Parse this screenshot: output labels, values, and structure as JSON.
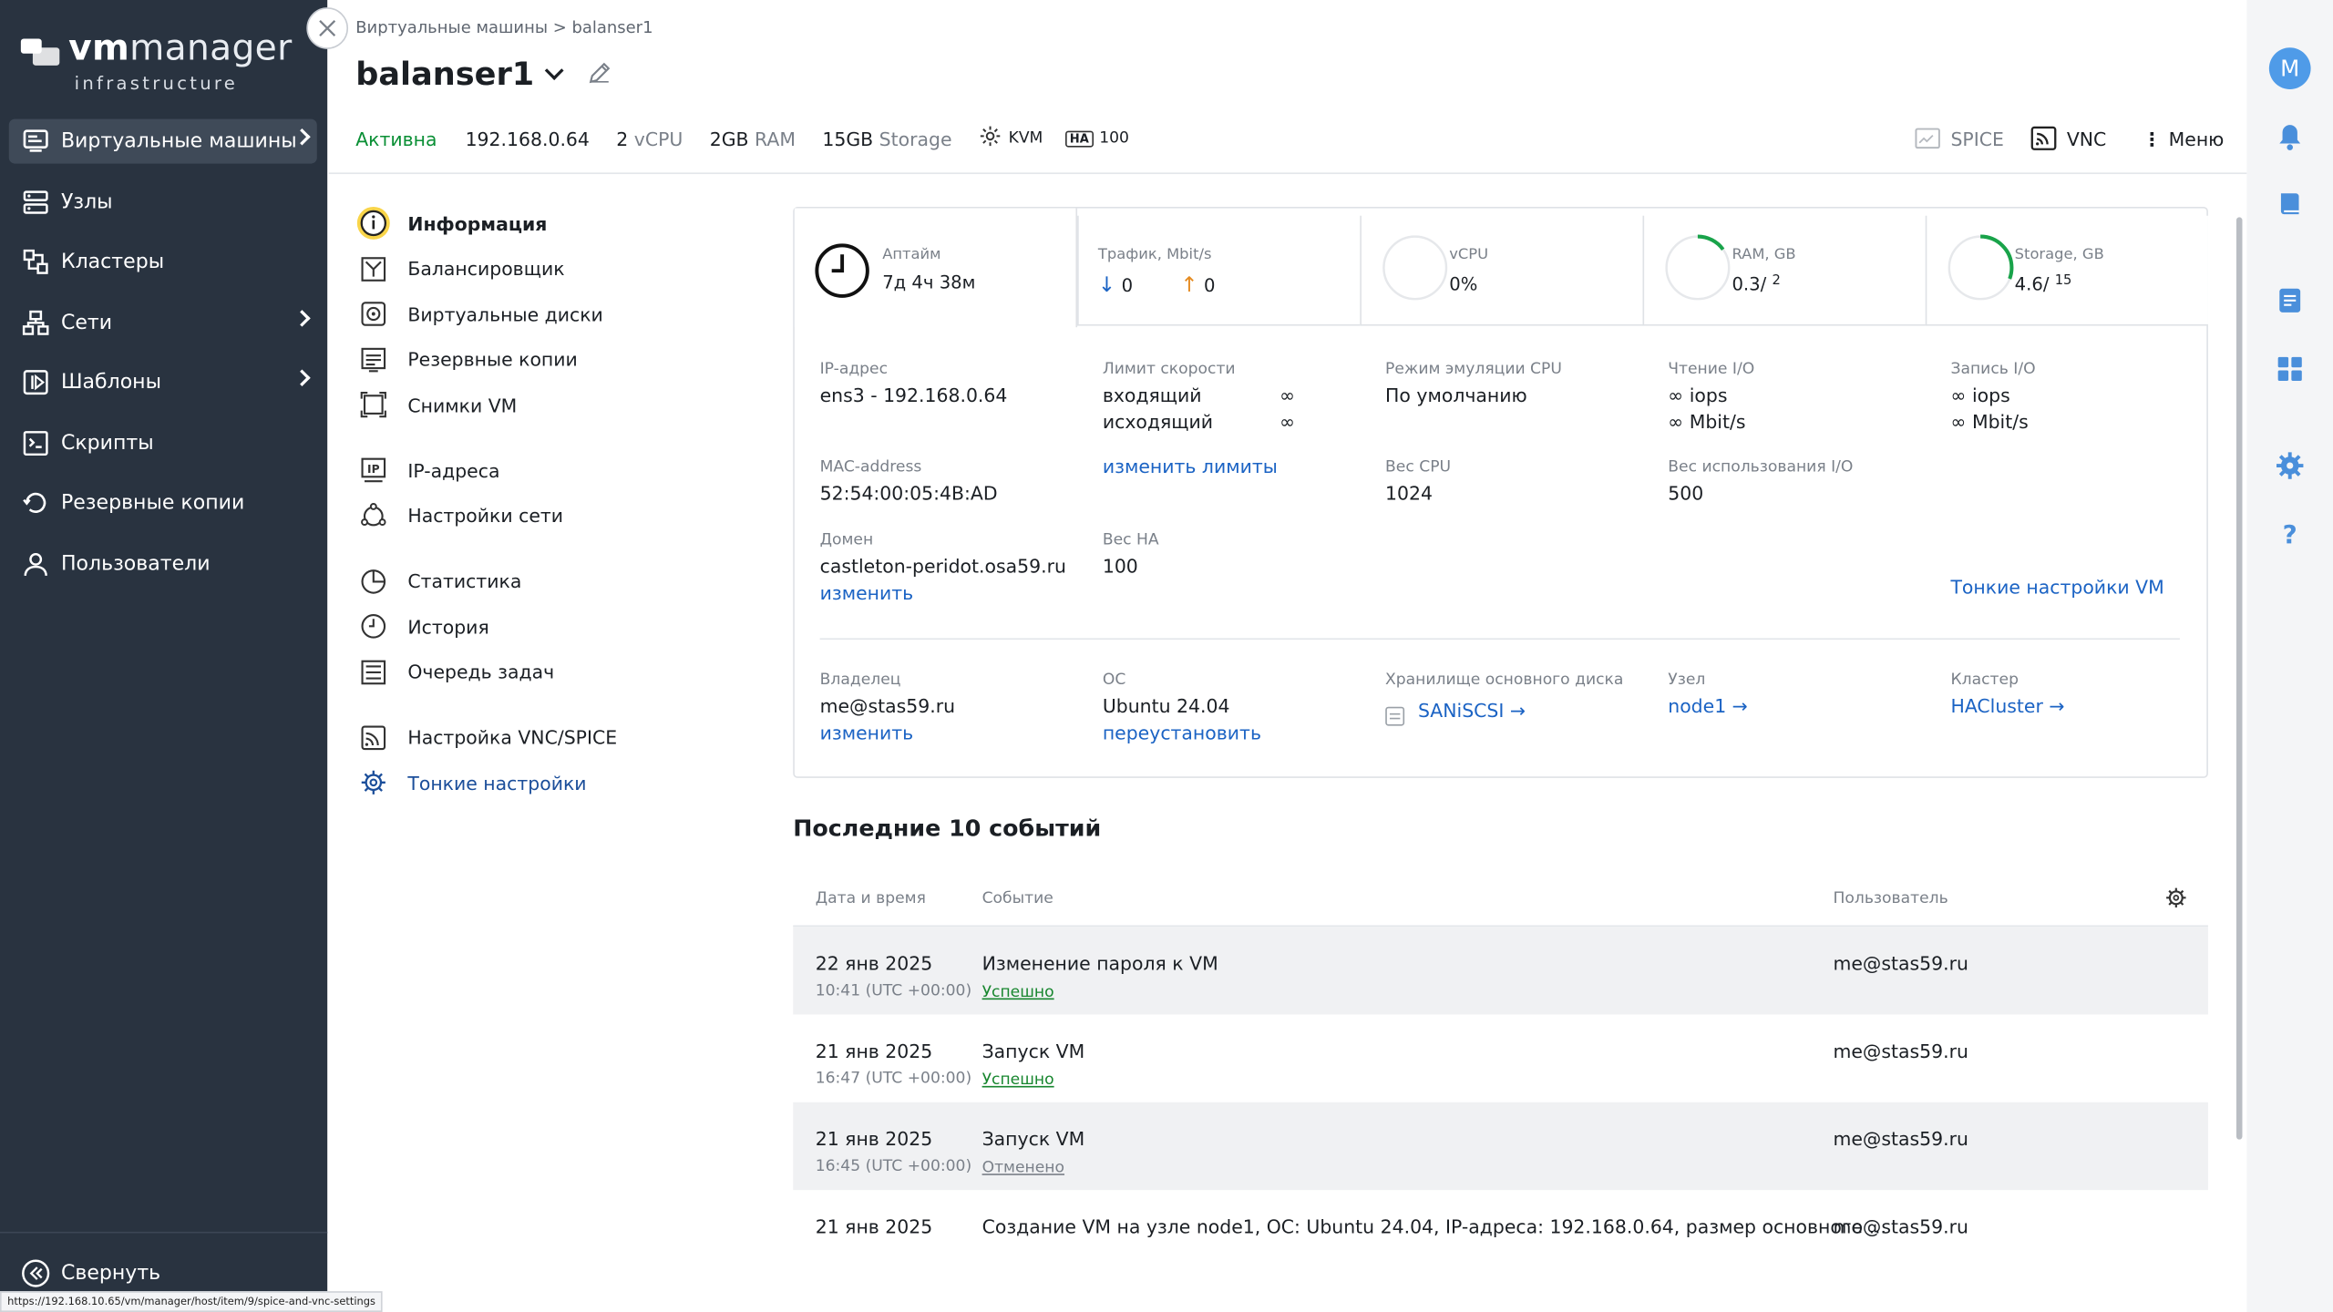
{
  "app": {
    "brand_bold": "vm",
    "brand_rest": "manager",
    "brand_sub": "infrastructure",
    "status_url": "https://192.168.10.65/vm/manager/host/item/9/spice-and-vnc-settings"
  },
  "sidebar": {
    "items": [
      {
        "label": "Виртуальные машины",
        "icon": "vm-icon",
        "active": true,
        "chevron": true
      },
      {
        "label": "Узлы",
        "icon": "nodes-icon"
      },
      {
        "label": "Кластеры",
        "icon": "clusters-icon"
      },
      {
        "label": "Сети",
        "icon": "networks-icon",
        "chevron": true
      },
      {
        "label": "Шаблоны",
        "icon": "templates-icon",
        "chevron": true
      },
      {
        "label": "Скрипты",
        "icon": "scripts-icon"
      },
      {
        "label": "Резервные копии",
        "icon": "backups-icon"
      },
      {
        "label": "Пользователи",
        "icon": "users-icon"
      }
    ],
    "collapse_label": "Свернуть"
  },
  "header": {
    "breadcrumb": "Виртуальные машины  >  balanser1",
    "title": "balanser1",
    "status": "Активна",
    "ip": "192.168.0.64",
    "vcpu_num": "2",
    "vcpu_unit": "vCPU",
    "ram_num": "2GB",
    "ram_unit": "RAM",
    "storage_num": "15GB",
    "storage_unit": "Storage",
    "hypervisor": "KVM",
    "ha_badge": "HA",
    "ha_value": "100",
    "spice_label": "SPICE",
    "vnc_label": "VNC",
    "menu_label": "Меню"
  },
  "rail": {
    "avatar_letter": "M"
  },
  "menu": {
    "groups": [
      [
        {
          "label": "Информация",
          "icon": "info-icon",
          "active": true
        },
        {
          "label": "Балансировщик",
          "icon": "balancer-icon"
        },
        {
          "label": "Виртуальные диски",
          "icon": "disk-icon"
        },
        {
          "label": "Резервные копии",
          "icon": "backup-icon"
        },
        {
          "label": "Снимки VM",
          "icon": "snapshot-icon"
        }
      ],
      [
        {
          "label": "IP-адреса",
          "icon": "ip-icon"
        },
        {
          "label": "Настройки сети",
          "icon": "network-settings-icon"
        }
      ],
      [
        {
          "label": "Статистика",
          "icon": "statistics-icon"
        },
        {
          "label": "История",
          "icon": "history-icon"
        },
        {
          "label": "Очередь задач",
          "icon": "task-queue-icon"
        }
      ],
      [
        {
          "label": "Настройка VNC/SPICE",
          "icon": "vnc-spice-icon"
        },
        {
          "label": "Тонкие настройки",
          "icon": "gear-icon",
          "link": true
        }
      ]
    ]
  },
  "metrics": {
    "uptime": {
      "label": "Аптайм",
      "value": "7д 4ч 38м"
    },
    "traffic": {
      "label": "Трафик, Mbit/s",
      "down": "0",
      "up": "0"
    },
    "vcpu": {
      "label": "vCPU",
      "value": "0%",
      "fraction": 0
    },
    "ram": {
      "label": "RAM, GB",
      "value": "0.3/",
      "total": "2",
      "fraction": 0.15
    },
    "storage": {
      "label": "Storage, GB",
      "value": "4.6/",
      "total": "15",
      "fraction": 0.307
    }
  },
  "info": {
    "ip_label": "IP-адрес",
    "ip_value": "ens3 - 192.168.0.64",
    "speed_label": "Лимит скорости",
    "speed_in": "входящий",
    "speed_out": "исходящий",
    "speed_in_val": "∞",
    "speed_out_val": "∞",
    "cpu_mode_label": "Режим эмуляции CPU",
    "cpu_mode_value": "По умолчанию",
    "read_label": "Чтение I/O",
    "read_iops": "∞ iops",
    "read_mbit": "∞ Mbit/s",
    "write_label": "Запись I/O",
    "write_iops": "∞ iops",
    "write_mbit": "∞ Mbit/s",
    "mac_label": "MAC-address",
    "mac_value": "52:54:00:05:4B:AD",
    "change_limits": "изменить лимиты",
    "cpu_weight_label": "Вес CPU",
    "cpu_weight_value": "1024",
    "io_weight_label": "Вес использования I/O",
    "io_weight_value": "500",
    "domain_label": "Домен",
    "domain_value": "castleton-peridot.osa59.ru",
    "domain_change": "изменить",
    "ha_weight_label": "Вес HA",
    "ha_weight_value": "100",
    "fine_tune_link": "Тонкие настройки VM",
    "owner_label": "Владелец",
    "owner_value": "me@stas59.ru",
    "owner_change": "изменить",
    "os_label": "ОС",
    "os_value": "Ubuntu 24.04",
    "os_reinstall": "переустановить",
    "storage_label": "Хранилище основного диска",
    "storage_value": "SANiSCSI →",
    "node_label": "Узел",
    "node_value": "node1 →",
    "cluster_label": "Кластер",
    "cluster_value": "HACluster →"
  },
  "events": {
    "title": "Последние 10 событий",
    "col_date": "Дата и время",
    "col_event": "Событие",
    "col_user": "Пользователь",
    "rows": [
      {
        "date": "22 янв 2025",
        "time": "10:41 (UTC +00:00)",
        "event": "Изменение пароля к VM",
        "status": "Успешно",
        "user": "me@stas59.ru"
      },
      {
        "date": "21 янв 2025",
        "time": "16:47 (UTC +00:00)",
        "event": "Запуск VM",
        "status": "Успешно",
        "user": "me@stas59.ru"
      },
      {
        "date": "21 янв 2025",
        "time": "16:45 (UTC +00:00)",
        "event": "Запуск VM",
        "status": "Отменено",
        "user": "me@stas59.ru"
      },
      {
        "date": "21 янв 2025",
        "time": "",
        "event": "Создание VM на узле node1, ОС: Ubuntu 24.04, IP-адреса: 192.168.0.64, размер основного ...",
        "status": "",
        "user": "me@stas59.ru"
      }
    ]
  },
  "colors": {
    "sidebar": "#293340",
    "active": "#3f4a58",
    "accent": "#1b63c4",
    "success": "#0a8f35",
    "donut": "#19a34a"
  }
}
